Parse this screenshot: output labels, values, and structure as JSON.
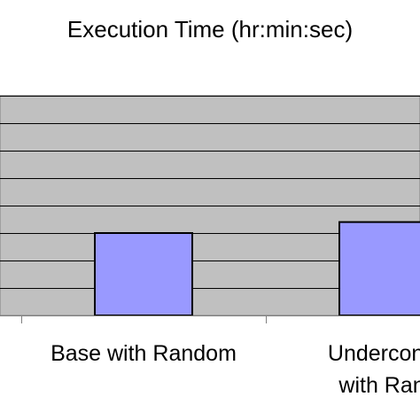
{
  "chart_data": {
    "type": "bar",
    "title": "Execution Time (hr:min:sec)",
    "categories": [
      [
        "Base with Random"
      ],
      [
        "Underconstr",
        "with Rand"
      ]
    ],
    "values": [
      3,
      3.4
    ],
    "ylim": [
      0,
      8
    ],
    "grid": true,
    "legend": "none",
    "colors": {
      "plot_background": "#c0c0c0",
      "bar_fill": "#9999ff",
      "bar_stroke": "#000000",
      "gridline": "#000000"
    }
  }
}
